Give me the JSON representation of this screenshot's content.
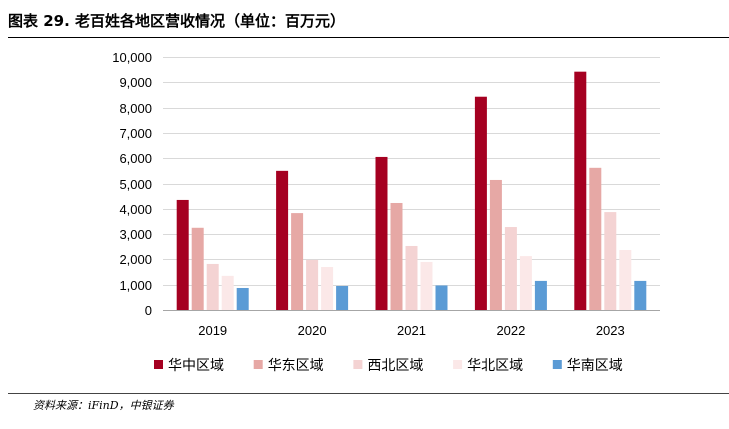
{
  "source": "资料来源：iFinD，中银证券",
  "chart_data": {
    "type": "bar",
    "title": "图表 29. 老百姓各地区营收情况（单位：百万元）",
    "xlabel": "",
    "ylabel": "",
    "categories": [
      "2019",
      "2020",
      "2021",
      "2022",
      "2023"
    ],
    "ylim": [
      0,
      10000
    ],
    "yticks": [
      0,
      1000,
      2000,
      3000,
      4000,
      5000,
      6000,
      7000,
      8000,
      9000,
      10000
    ],
    "ytick_labels": [
      "0",
      "1,000",
      "2,000",
      "3,000",
      "4,000",
      "5,000",
      "6,000",
      "7,000",
      "8,000",
      "9,000",
      "10,000"
    ],
    "grid": "horizontal",
    "legend": "bottom",
    "series": [
      {
        "name": "华中区域",
        "color": "#A50021",
        "values": [
          4350,
          5500,
          6050,
          8430,
          9420
        ]
      },
      {
        "name": "华东区域",
        "color": "#E6A8A5",
        "values": [
          3250,
          3830,
          4230,
          5140,
          5620
        ]
      },
      {
        "name": "西北区域",
        "color": "#F4D3D3",
        "values": [
          1820,
          1980,
          2530,
          3280,
          3870
        ]
      },
      {
        "name": "华北区域",
        "color": "#FBE8E8",
        "values": [
          1350,
          1700,
          1900,
          2130,
          2370
        ]
      },
      {
        "name": "华南区域",
        "color": "#5B9BD5",
        "values": [
          870,
          950,
          970,
          1150,
          1150
        ]
      }
    ]
  }
}
